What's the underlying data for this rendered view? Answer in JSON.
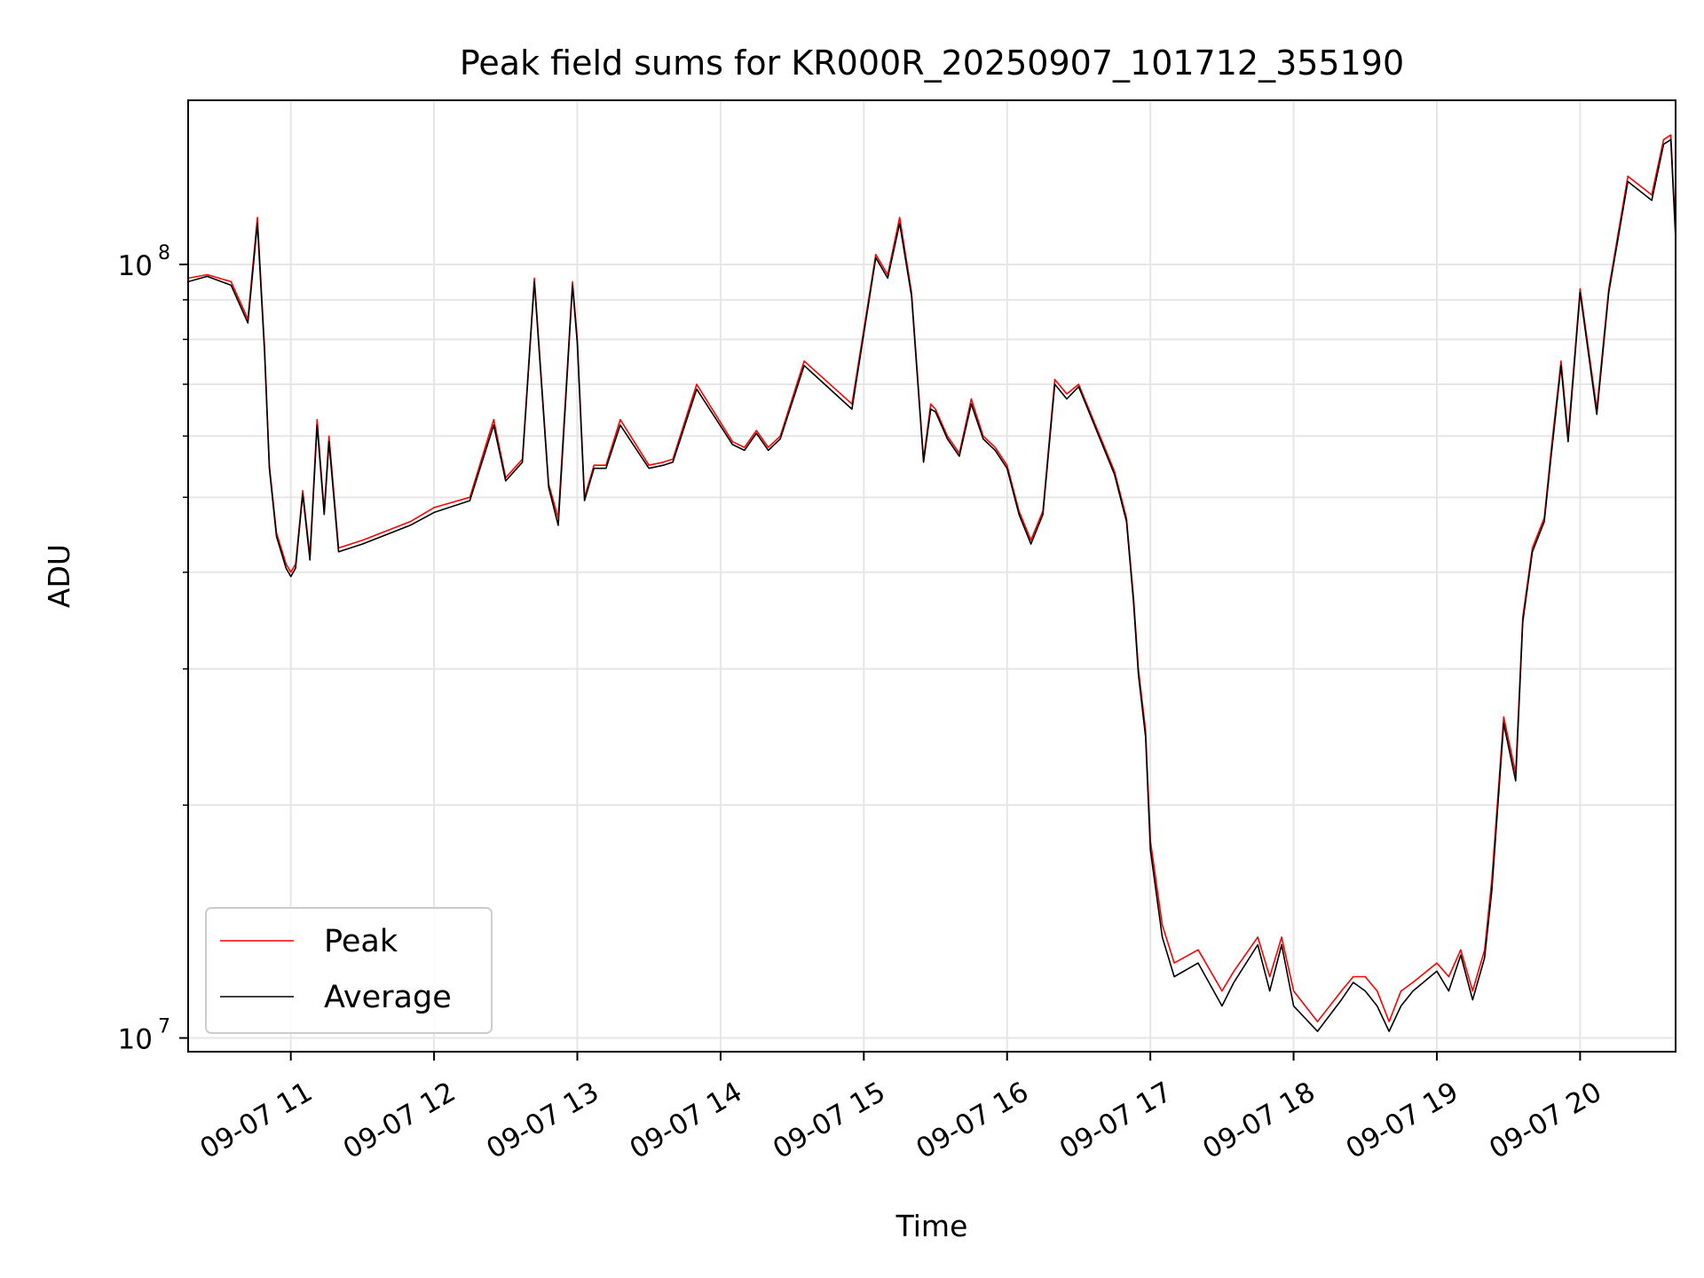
{
  "chart_data": {
    "type": "line",
    "title": "Peak field sums for KR000R_20250907_101712_355190",
    "xlabel": "Time",
    "ylabel": "ADU",
    "yscale": "log",
    "xlim": [
      "09-07 10:17",
      "09-07 20:40"
    ],
    "ylim": [
      9600000,
      163000000
    ],
    "grid": true,
    "legend_position": "lower-left",
    "x_ticks": [
      "09-07 11",
      "09-07 12",
      "09-07 13",
      "09-07 14",
      "09-07 15",
      "09-07 16",
      "09-07 17",
      "09-07 18",
      "09-07 19",
      "09-07 20"
    ],
    "y_ticks": [
      {
        "value": 10000000,
        "base": "10",
        "exp": "7"
      },
      {
        "value": 100000000,
        "base": "10",
        "exp": "8"
      }
    ],
    "x": [
      "10:17",
      "10:25",
      "10:35",
      "10:42",
      "10:46",
      "10:49",
      "10:51",
      "10:54",
      "10:58",
      "11:00",
      "11:02",
      "11:05",
      "11:08",
      "11:11",
      "11:14",
      "11:16",
      "11:20",
      "11:30",
      "11:50",
      "12:00",
      "12:15",
      "12:25",
      "12:30",
      "12:37",
      "12:42",
      "12:48",
      "12:52",
      "12:58",
      "13:00",
      "13:03",
      "13:07",
      "13:12",
      "13:18",
      "13:30",
      "13:36",
      "13:40",
      "13:50",
      "14:05",
      "14:10",
      "14:15",
      "14:20",
      "14:25",
      "14:35",
      "14:55",
      "15:05",
      "15:10",
      "15:15",
      "15:20",
      "15:25",
      "15:28",
      "15:30",
      "15:35",
      "15:40",
      "15:45",
      "15:50",
      "15:55",
      "16:00",
      "16:05",
      "16:10",
      "16:15",
      "16:20",
      "16:25",
      "16:30",
      "16:37",
      "16:45",
      "16:50",
      "16:53",
      "16:55",
      "16:58",
      "17:00",
      "17:05",
      "17:10",
      "17:20",
      "17:30",
      "17:35",
      "17:45",
      "17:50",
      "17:55",
      "18:00",
      "18:10",
      "18:20",
      "18:25",
      "18:30",
      "18:35",
      "18:40",
      "18:45",
      "18:50",
      "19:00",
      "19:05",
      "19:10",
      "19:15",
      "19:20",
      "19:23",
      "19:28",
      "19:33",
      "19:36",
      "19:40",
      "19:45",
      "19:48",
      "19:52",
      "19:55",
      "20:00",
      "20:07",
      "20:12",
      "20:20",
      "20:30",
      "20:35",
      "20:38",
      "20:40"
    ],
    "series": [
      {
        "name": "Peak",
        "color": "#ff0000",
        "values": [
          96000000,
          97000000,
          95000000,
          85000000,
          115000000,
          78000000,
          55000000,
          45000000,
          41000000,
          40000000,
          41000000,
          51000000,
          42000000,
          63000000,
          48000000,
          60000000,
          43000000,
          44000000,
          46500000,
          48500000,
          50000000,
          63000000,
          53000000,
          56000000,
          96000000,
          52000000,
          47000000,
          95000000,
          80000000,
          50000000,
          55000000,
          55000000,
          63000000,
          55000000,
          55500000,
          56000000,
          70000000,
          59000000,
          58000000,
          61000000,
          58000000,
          60000000,
          75000000,
          66000000,
          103000000,
          97000000,
          115000000,
          92000000,
          56000000,
          66000000,
          65000000,
          60000000,
          57000000,
          67000000,
          60000000,
          58000000,
          55000000,
          48000000,
          44000000,
          48000000,
          71000000,
          68000000,
          70000000,
          62000000,
          54000000,
          47000000,
          37000000,
          30000000,
          25000000,
          18000000,
          14000000,
          12500000,
          13000000,
          11500000,
          12200000,
          13500000,
          12000000,
          13500000,
          11500000,
          10500000,
          11500000,
          12000000,
          12000000,
          11500000,
          10500000,
          11500000,
          11800000,
          12500000,
          12000000,
          13000000,
          11500000,
          13000000,
          16000000,
          26000000,
          22000000,
          35000000,
          43000000,
          47000000,
          58000000,
          75000000,
          60000000,
          93000000,
          65000000,
          93000000,
          130000000,
          123000000,
          145000000,
          147000000,
          110000000
        ]
      },
      {
        "name": "Average",
        "color": "#000000",
        "values": [
          95000000,
          96500000,
          94000000,
          84000000,
          113000000,
          77000000,
          54500000,
          44500000,
          40500000,
          39500000,
          40500000,
          50500000,
          41500000,
          62000000,
          47500000,
          59000000,
          42500000,
          43500000,
          46000000,
          47800000,
          49500000,
          62000000,
          52500000,
          55500000,
          95000000,
          51500000,
          46000000,
          94000000,
          79000000,
          49500000,
          54500000,
          54500000,
          62000000,
          54500000,
          55000000,
          55500000,
          69000000,
          58500000,
          57500000,
          60500000,
          57500000,
          59500000,
          74000000,
          65000000,
          102000000,
          96000000,
          113000000,
          91000000,
          55500000,
          65000000,
          64500000,
          59500000,
          56500000,
          66000000,
          59500000,
          57500000,
          54500000,
          47500000,
          43500000,
          47500000,
          70000000,
          67000000,
          69500000,
          61500000,
          53500000,
          46500000,
          36500000,
          29500000,
          24500000,
          17500000,
          13500000,
          12000000,
          12500000,
          11000000,
          11800000,
          13200000,
          11500000,
          13200000,
          11000000,
          10200000,
          11200000,
          11800000,
          11500000,
          11000000,
          10200000,
          11000000,
          11500000,
          12200000,
          11500000,
          12800000,
          11200000,
          12700000,
          15500000,
          25500000,
          21500000,
          34500000,
          42500000,
          46500000,
          57000000,
          74000000,
          59000000,
          92000000,
          64000000,
          92000000,
          128000000,
          121000000,
          143000000,
          145000000,
          108000000
        ]
      }
    ]
  }
}
